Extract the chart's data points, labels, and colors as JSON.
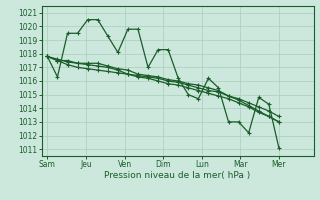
{
  "background_color": "#cce8dc",
  "grid_color": "#aaccbb",
  "line_color": "#1a5c2a",
  "xlabel": "Pression niveau de la mer( hPa )",
  "ylim": [
    1010.5,
    1021.5
  ],
  "yticks": [
    1011,
    1012,
    1013,
    1014,
    1015,
    1016,
    1017,
    1018,
    1019,
    1020,
    1021
  ],
  "x_tick_labels": [
    "Sam",
    "Jeu",
    "Ven",
    "Dim",
    "Lun",
    "Mar",
    "Mer"
  ],
  "x_tick_positions": [
    0,
    2,
    4,
    6,
    8,
    10,
    12
  ],
  "xlim": [
    -0.3,
    13.8
  ],
  "series": [
    [
      1017.8,
      1016.3,
      1019.5,
      1019.5,
      1020.5,
      1020.5,
      1019.3,
      1018.1,
      1019.8,
      1019.8,
      1017.0,
      1018.3,
      1018.3,
      1016.2,
      1015.0,
      1014.7,
      1016.2,
      1015.5,
      1013.0,
      1013.0,
      1012.2,
      1014.8,
      1014.3,
      1011.1
    ],
    [
      1017.8,
      1017.5,
      1017.5,
      1017.3,
      1017.3,
      1017.3,
      1017.1,
      1016.9,
      1016.8,
      1016.5,
      1016.4,
      1016.3,
      1016.1,
      1016.0,
      1015.8,
      1015.7,
      1015.5,
      1015.3,
      1014.9,
      1014.6,
      1014.2,
      1013.8,
      1013.4,
      1013.0
    ],
    [
      1017.8,
      1017.6,
      1017.4,
      1017.3,
      1017.2,
      1017.1,
      1017.0,
      1016.8,
      1016.5,
      1016.3,
      1016.2,
      1016.0,
      1015.8,
      1015.7,
      1015.5,
      1015.3,
      1015.1,
      1014.9,
      1014.7,
      1014.4,
      1014.1,
      1013.7,
      1013.4,
      1013.0
    ],
    [
      1017.8,
      1017.5,
      1017.2,
      1017.0,
      1016.9,
      1016.8,
      1016.7,
      1016.6,
      1016.5,
      1016.4,
      1016.3,
      1016.2,
      1016.0,
      1015.9,
      1015.7,
      1015.5,
      1015.3,
      1015.2,
      1014.9,
      1014.7,
      1014.4,
      1014.1,
      1013.8,
      1013.4
    ]
  ],
  "marker": "+",
  "marker_size": 3,
  "linewidth": 0.9,
  "tick_fontsize": 5.5,
  "label_fontsize": 6.5
}
